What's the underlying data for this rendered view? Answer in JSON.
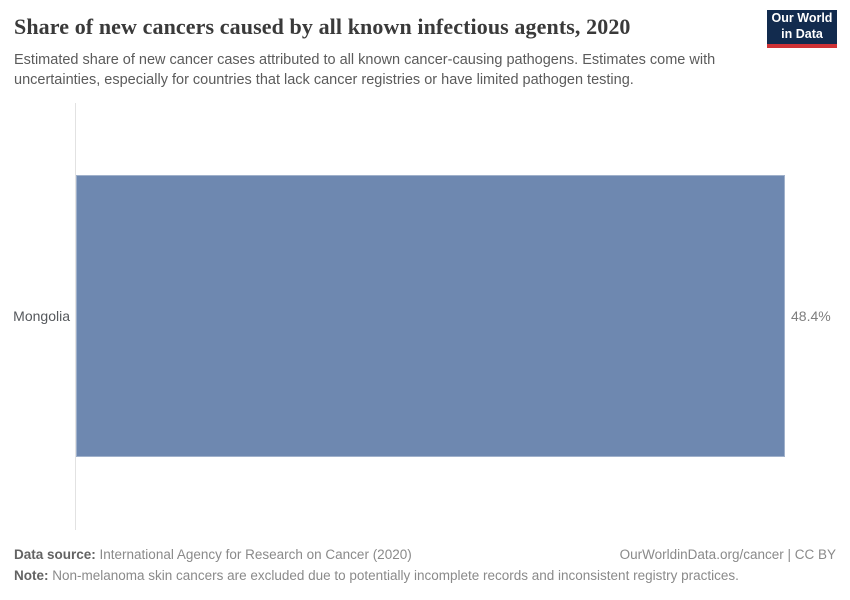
{
  "header": {
    "title": "Share of new cancers caused by all known infectious agents, 2020",
    "subtitle": "Estimated share of new cancer cases attributed to all known cancer-causing pathogens. Estimates come with uncertainties, especially for countries that lack cancer registries or have limited pathogen testing.",
    "logo": {
      "line1": "Our World",
      "line2": "in Data",
      "background_color": "#122b4e",
      "accent_color": "#cf3235"
    }
  },
  "chart_data": {
    "type": "bar",
    "orientation": "horizontal",
    "title": "Share of new cancers caused by all known infectious agents, 2020",
    "categories": [
      "Mongolia"
    ],
    "values": [
      48.4
    ],
    "value_labels": [
      "48.4%"
    ],
    "xlabel": "",
    "ylabel": "",
    "xlim": [
      0,
      48.4
    ],
    "grid": false,
    "legend": false,
    "bar_color": "#6e88b0",
    "axis_line_color": "#e2e2e2"
  },
  "footer": {
    "data_source_label": "Data source:",
    "data_source_text": " International Agency for Research on Cancer (2020)",
    "link": "OurWorldinData.org/cancer | CC BY",
    "note_label": "Note:",
    "note_text": " Non-melanoma skin cancers are excluded due to potentially incomplete records and inconsistent registry practices."
  }
}
